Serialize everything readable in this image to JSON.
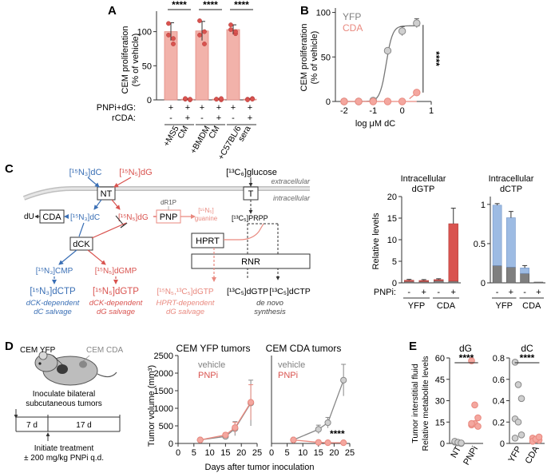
{
  "colors": {
    "blue": "#3a6fb5",
    "blue_light": "#9dbbe3",
    "red": "#d9534f",
    "red_light": "#f2b2aa",
    "salmon": "#e9897f",
    "grey": "#7f7f7f",
    "grey_dark": "#555555",
    "grey_light": "#cfcfcf"
  },
  "panels": {
    "A": {
      "letter": "A",
      "ylabel_1": "CEM proliferation",
      "ylabel_2": "(% of vehicle)",
      "row1_label": "PNPi+dG:",
      "row2_label": "rCDA:",
      "signs_row1": [
        "+",
        "+",
        "+",
        "+",
        "+",
        "+"
      ],
      "signs_row2": [
        "-",
        "+",
        "-",
        "+",
        "-",
        "+"
      ],
      "groups": [
        {
          "name_1": "+MS5",
          "name_2": "CM"
        },
        {
          "name_1": "+BMDM",
          "name_2": "CM"
        },
        {
          "name_1": "+C57BL/6",
          "name_2": "sera"
        }
      ],
      "sig": "****"
    },
    "B": {
      "letter": "B",
      "ylabel_1": "CEM proliferation",
      "ylabel_2": "(% of vehicle)",
      "xlabel": "log μM dC",
      "legend": [
        "YFP",
        "CDA"
      ],
      "sig": "****"
    },
    "C": {
      "letter": "C",
      "extracellular": "extracellular",
      "intracellular": "intracellular",
      "dC_lbl": "[¹⁵N₃]dC",
      "dG_lbl": "[¹⁵N₅]dG",
      "glucose_lbl": "[¹³C₆]glucose",
      "nt_lbl": "NT",
      "t_lbl": "T",
      "du_lbl": "dU",
      "cda_lbl": "CDA",
      "dC_in_lbl": "[¹⁵N₃]dC",
      "dG_in_lbl": "[¹⁵N₅]dG",
      "pnp_lbl": "PNP",
      "dr1p_lbl": "dR1P",
      "guanine_1": "[¹⁵N₅]",
      "guanine_2": "guanine",
      "prpp_lbl": "[¹³C₅]PRPP",
      "dck_lbl": "dCK",
      "hprt_lbl": "HPRT",
      "rnr_lbl": "RNR",
      "cmp_lbl": "[¹⁵N₃]CMP",
      "dgmp_lbl": "[¹⁵N₅]dGMP",
      "dctp_lbl": "[¹⁵N₃]dCTP",
      "dgtp_lbl": "[¹⁵N₅]dGTP",
      "hdgtp_lbl": "[¹⁵N₅,¹³C₅]dGTP",
      "c_dgtp_lbl": "[¹³C₅]dGTP",
      "c_dctp_lbl": "[¹³C₅]dCTP",
      "cap1_1": "dCK-dependent",
      "cap1_2": "dC salvage",
      "cap2_1": "dCK-dependent",
      "cap2_2": "dG salvage",
      "cap3_1": "HPRT-dependent",
      "cap3_2": "dG salvage",
      "cap4_1": "de novo",
      "cap4_2": "synthesis",
      "dgtp_title_1": "Intracellular",
      "dgtp_title_2": "dGTP",
      "dctp_title_1": "Intracellular",
      "dctp_title_2": "dCTP",
      "ylabel": "Relative levels",
      "pnpi_lbl": "PNPi:",
      "signs": [
        "-",
        "+",
        "-",
        "+"
      ],
      "groups": [
        "YFP",
        "CDA"
      ]
    },
    "D": {
      "letter": "D",
      "mouse_yfp": "CEM YFP",
      "mouse_cda": "CEM CDA",
      "inoc_1": "Inoculate bilateral",
      "inoc_2": "subcutaneous tumors",
      "d7": "7 d",
      "d17": "17 d",
      "treat_1": "Initiate treatment",
      "treat_2": "± 200 mg/kg PNPi q.d.",
      "title_yfp": "CEM YFP tumors",
      "title_cda": "CEM CDA tumors",
      "legend": [
        "vehicle",
        "PNPi"
      ],
      "ylabel": "Tumor volume (mm³)",
      "xlabel": "Days after tumor inoculation",
      "sig": "****"
    },
    "E": {
      "letter": "E",
      "ylabel_1": "Tumor interstitial fluid",
      "ylabel_2": "Relative metabolite levels",
      "title_dg": "dG",
      "title_dc": "dC",
      "cats_dg": [
        "NT",
        "PNPi"
      ],
      "cats_dc": [
        "YFP",
        "CDA"
      ],
      "sig": "****"
    }
  },
  "chart_data": [
    {
      "panel": "A",
      "type": "bar",
      "categories": [
        "+MS5 CM −rCDA",
        "+MS5 CM +rCDA",
        "+BMDM CM −rCDA",
        "+BMDM CM +rCDA",
        "+C57BL/6 sera −rCDA",
        "+C57BL/6 sera +rCDA"
      ],
      "values": [
        100,
        1,
        101,
        1,
        103,
        1
      ],
      "errors": [
        13,
        1,
        14,
        1,
        7,
        1
      ],
      "points": [
        [
          112,
          90,
          95,
          82
        ],
        [
          1,
          0,
          2,
          1
        ],
        [
          116,
          100,
          95,
          82
        ],
        [
          1,
          0,
          1,
          2
        ],
        [
          110,
          97,
          103,
          100
        ],
        [
          1,
          2,
          0,
          1
        ]
      ],
      "ylim": [
        0,
        130
      ],
      "yticks": [
        0,
        50,
        100
      ]
    },
    {
      "panel": "B",
      "type": "scatter",
      "series": [
        {
          "name": "YFP",
          "x": [
            -2,
            -1.5,
            -1,
            -0.5,
            0,
            0.5
          ],
          "y": [
            0,
            0,
            1,
            57,
            79,
            88
          ],
          "err": [
            0,
            0,
            0,
            2,
            5,
            5
          ]
        },
        {
          "name": "CDA",
          "x": [
            -2,
            -1.5,
            -1,
            -0.5,
            0,
            0.5
          ],
          "y": [
            0,
            0,
            0,
            0,
            0,
            10
          ],
          "err": [
            0,
            0,
            0,
            0,
            0,
            2
          ]
        }
      ],
      "xlim": [
        -2.3,
        1.0
      ],
      "ylim": [
        0,
        105
      ],
      "xticks": [
        -2,
        -1,
        0,
        1
      ],
      "yticks": [
        0,
        50,
        100
      ]
    },
    {
      "panel": "C-dGTP",
      "type": "bar",
      "categories": [
        "YFP −",
        "YFP +",
        "CDA −",
        "CDA +"
      ],
      "series": [
        {
          "name": "unlabeled",
          "values": [
            0.35,
            0.3,
            0.5,
            0.4
          ]
        },
        {
          "name": "labeled",
          "values": [
            0.25,
            0.25,
            0.25,
            13.3
          ]
        }
      ],
      "errors": [
        0.2,
        0.2,
        0.2,
        3.6
      ],
      "ylim": [
        0,
        20
      ],
      "yticks": [
        0,
        5,
        10,
        15,
        20
      ]
    },
    {
      "panel": "C-dCTP",
      "type": "bar",
      "categories": [
        "YFP −",
        "YFP +",
        "CDA −",
        "CDA +"
      ],
      "series": [
        {
          "name": "unlabeled",
          "values": [
            0.22,
            0.2,
            0.12,
            0.01
          ]
        },
        {
          "name": "labeled",
          "values": [
            0.77,
            0.63,
            0.07,
            0.0
          ]
        }
      ],
      "errors": [
        0.02,
        0.08,
        0.03,
        0.0
      ],
      "ylim": [
        0,
        1.1
      ],
      "yticks": [
        0,
        0.5,
        1.0
      ]
    },
    {
      "panel": "D-YFP",
      "type": "line",
      "series": [
        {
          "name": "vehicle",
          "x": [
            7,
            15,
            18,
            23
          ],
          "y": [
            100,
            200,
            420,
            1150
          ],
          "err": [
            0,
            60,
            200,
            650
          ]
        },
        {
          "name": "PNPi",
          "x": [
            7,
            15,
            18,
            23
          ],
          "y": [
            100,
            240,
            450,
            1170
          ],
          "err": [
            0,
            60,
            150,
            500
          ]
        }
      ],
      "xlim": [
        0,
        25
      ],
      "ylim": [
        0,
        2500
      ],
      "xticks": [
        0,
        5,
        10,
        15,
        20,
        25
      ],
      "yticks": [
        0,
        500,
        1000,
        1500,
        2000,
        2500
      ]
    },
    {
      "panel": "D-CDA",
      "type": "line",
      "series": [
        {
          "name": "vehicle",
          "x": [
            7,
            15,
            18,
            23
          ],
          "y": [
            100,
            400,
            590,
            1800
          ],
          "err": [
            0,
            120,
            150,
            450
          ]
        },
        {
          "name": "PNPi",
          "x": [
            7,
            15,
            18,
            23
          ],
          "y": [
            100,
            30,
            20,
            20
          ],
          "err": [
            0,
            0,
            0,
            0
          ]
        }
      ],
      "xlim": [
        0,
        25
      ],
      "ylim": [
        0,
        2500
      ],
      "xticks": [
        0,
        5,
        10,
        15,
        20,
        25
      ],
      "yticks": [
        0,
        500,
        1000,
        1500,
        2000,
        2500
      ]
    },
    {
      "panel": "E-dG",
      "type": "scatter",
      "categories": [
        "NT",
        "PNPi"
      ],
      "points": [
        [
          1,
          0.5,
          0,
          1.5,
          0.8,
          0.3
        ],
        [
          58,
          27,
          18,
          13,
          14,
          12,
          14
        ]
      ],
      "ylim": [
        0,
        60
      ],
      "yticks": [
        0,
        15,
        30,
        45,
        60
      ]
    },
    {
      "panel": "E-dC",
      "type": "scatter",
      "categories": [
        "YFP",
        "CDA"
      ],
      "points": [
        [
          0.76,
          0.55,
          0.42,
          0.23,
          0.2,
          0.08,
          0.05
        ],
        [
          0.05,
          0.04,
          0.03,
          0.02,
          0.04,
          0.06
        ]
      ],
      "ylim": [
        0,
        0.8
      ],
      "yticks": [
        0,
        0.2,
        0.4,
        0.6,
        0.8
      ]
    }
  ]
}
